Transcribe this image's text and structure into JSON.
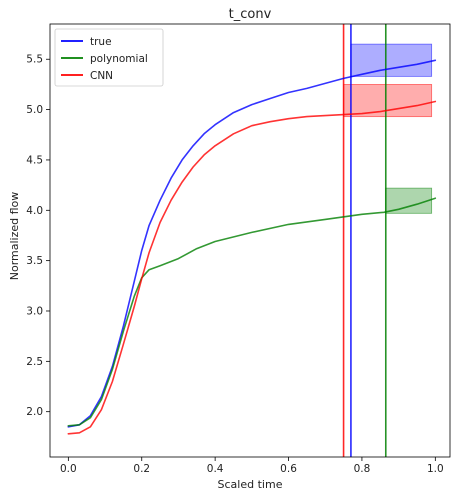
{
  "chart_data": {
    "type": "line",
    "title": "t_conv",
    "xlabel": "Scaled time",
    "ylabel": "Normalized flow",
    "xlim": [
      -0.05,
      1.04
    ],
    "ylim": [
      1.55,
      5.85
    ],
    "xticks": [
      "0.0",
      "0.2",
      "0.4",
      "0.6",
      "0.8",
      "1.0"
    ],
    "xtick_values": [
      0.0,
      0.2,
      0.4,
      0.6,
      0.8,
      1.0
    ],
    "yticks": [
      "2.0",
      "2.5",
      "3.0",
      "3.5",
      "4.0",
      "4.5",
      "5.0",
      "5.5"
    ],
    "ytick_values": [
      2.0,
      2.5,
      3.0,
      3.5,
      4.0,
      4.5,
      5.0,
      5.5
    ],
    "grid": false,
    "legend_position": "top-left",
    "series": [
      {
        "name": "true",
        "color": "#0000ff",
        "x": [
          0.0,
          0.03,
          0.06,
          0.09,
          0.12,
          0.15,
          0.18,
          0.2,
          0.22,
          0.25,
          0.28,
          0.31,
          0.34,
          0.37,
          0.4,
          0.45,
          0.5,
          0.55,
          0.6,
          0.65,
          0.7,
          0.75,
          0.8,
          0.85,
          0.9,
          0.95,
          1.0
        ],
        "values": [
          1.85,
          1.87,
          1.96,
          2.15,
          2.45,
          2.85,
          3.3,
          3.6,
          3.85,
          4.1,
          4.32,
          4.5,
          4.64,
          4.76,
          4.85,
          4.97,
          5.05,
          5.11,
          5.17,
          5.21,
          5.26,
          5.31,
          5.35,
          5.39,
          5.42,
          5.45,
          5.49
        ]
      },
      {
        "name": "polynomial",
        "color": "#008000",
        "x": [
          0.0,
          0.03,
          0.06,
          0.09,
          0.12,
          0.15,
          0.18,
          0.2,
          0.22,
          0.25,
          0.3,
          0.35,
          0.4,
          0.5,
          0.6,
          0.7,
          0.8,
          0.86,
          0.9,
          0.95,
          1.0
        ],
        "values": [
          1.86,
          1.87,
          1.94,
          2.12,
          2.42,
          2.8,
          3.15,
          3.33,
          3.41,
          3.45,
          3.52,
          3.62,
          3.69,
          3.78,
          3.86,
          3.91,
          3.96,
          3.98,
          4.01,
          4.06,
          4.12
        ]
      },
      {
        "name": "CNN",
        "color": "#ff0000",
        "x": [
          0.0,
          0.03,
          0.06,
          0.09,
          0.12,
          0.15,
          0.18,
          0.2,
          0.22,
          0.25,
          0.28,
          0.31,
          0.34,
          0.37,
          0.4,
          0.45,
          0.5,
          0.55,
          0.6,
          0.65,
          0.7,
          0.75,
          0.8,
          0.85,
          0.9,
          0.95,
          1.0
        ],
        "values": [
          1.78,
          1.79,
          1.85,
          2.02,
          2.3,
          2.67,
          3.05,
          3.32,
          3.58,
          3.88,
          4.1,
          4.28,
          4.43,
          4.55,
          4.64,
          4.76,
          4.84,
          4.88,
          4.91,
          4.93,
          4.94,
          4.95,
          4.96,
          4.98,
          5.01,
          5.04,
          5.08
        ]
      }
    ],
    "vertical_lines": [
      {
        "x": 0.75,
        "color": "#ff0000"
      },
      {
        "x": 0.77,
        "color": "#0000ff"
      },
      {
        "x": 0.865,
        "color": "#008000"
      }
    ],
    "shaded_boxes": [
      {
        "x0": 0.77,
        "x1": 0.99,
        "y0": 5.33,
        "y1": 5.65,
        "color": "#0000ff"
      },
      {
        "x0": 0.75,
        "x1": 0.99,
        "y0": 4.93,
        "y1": 5.25,
        "color": "#ff0000"
      },
      {
        "x0": 0.865,
        "x1": 0.99,
        "y0": 3.97,
        "y1": 4.22,
        "color": "#008000"
      }
    ]
  }
}
